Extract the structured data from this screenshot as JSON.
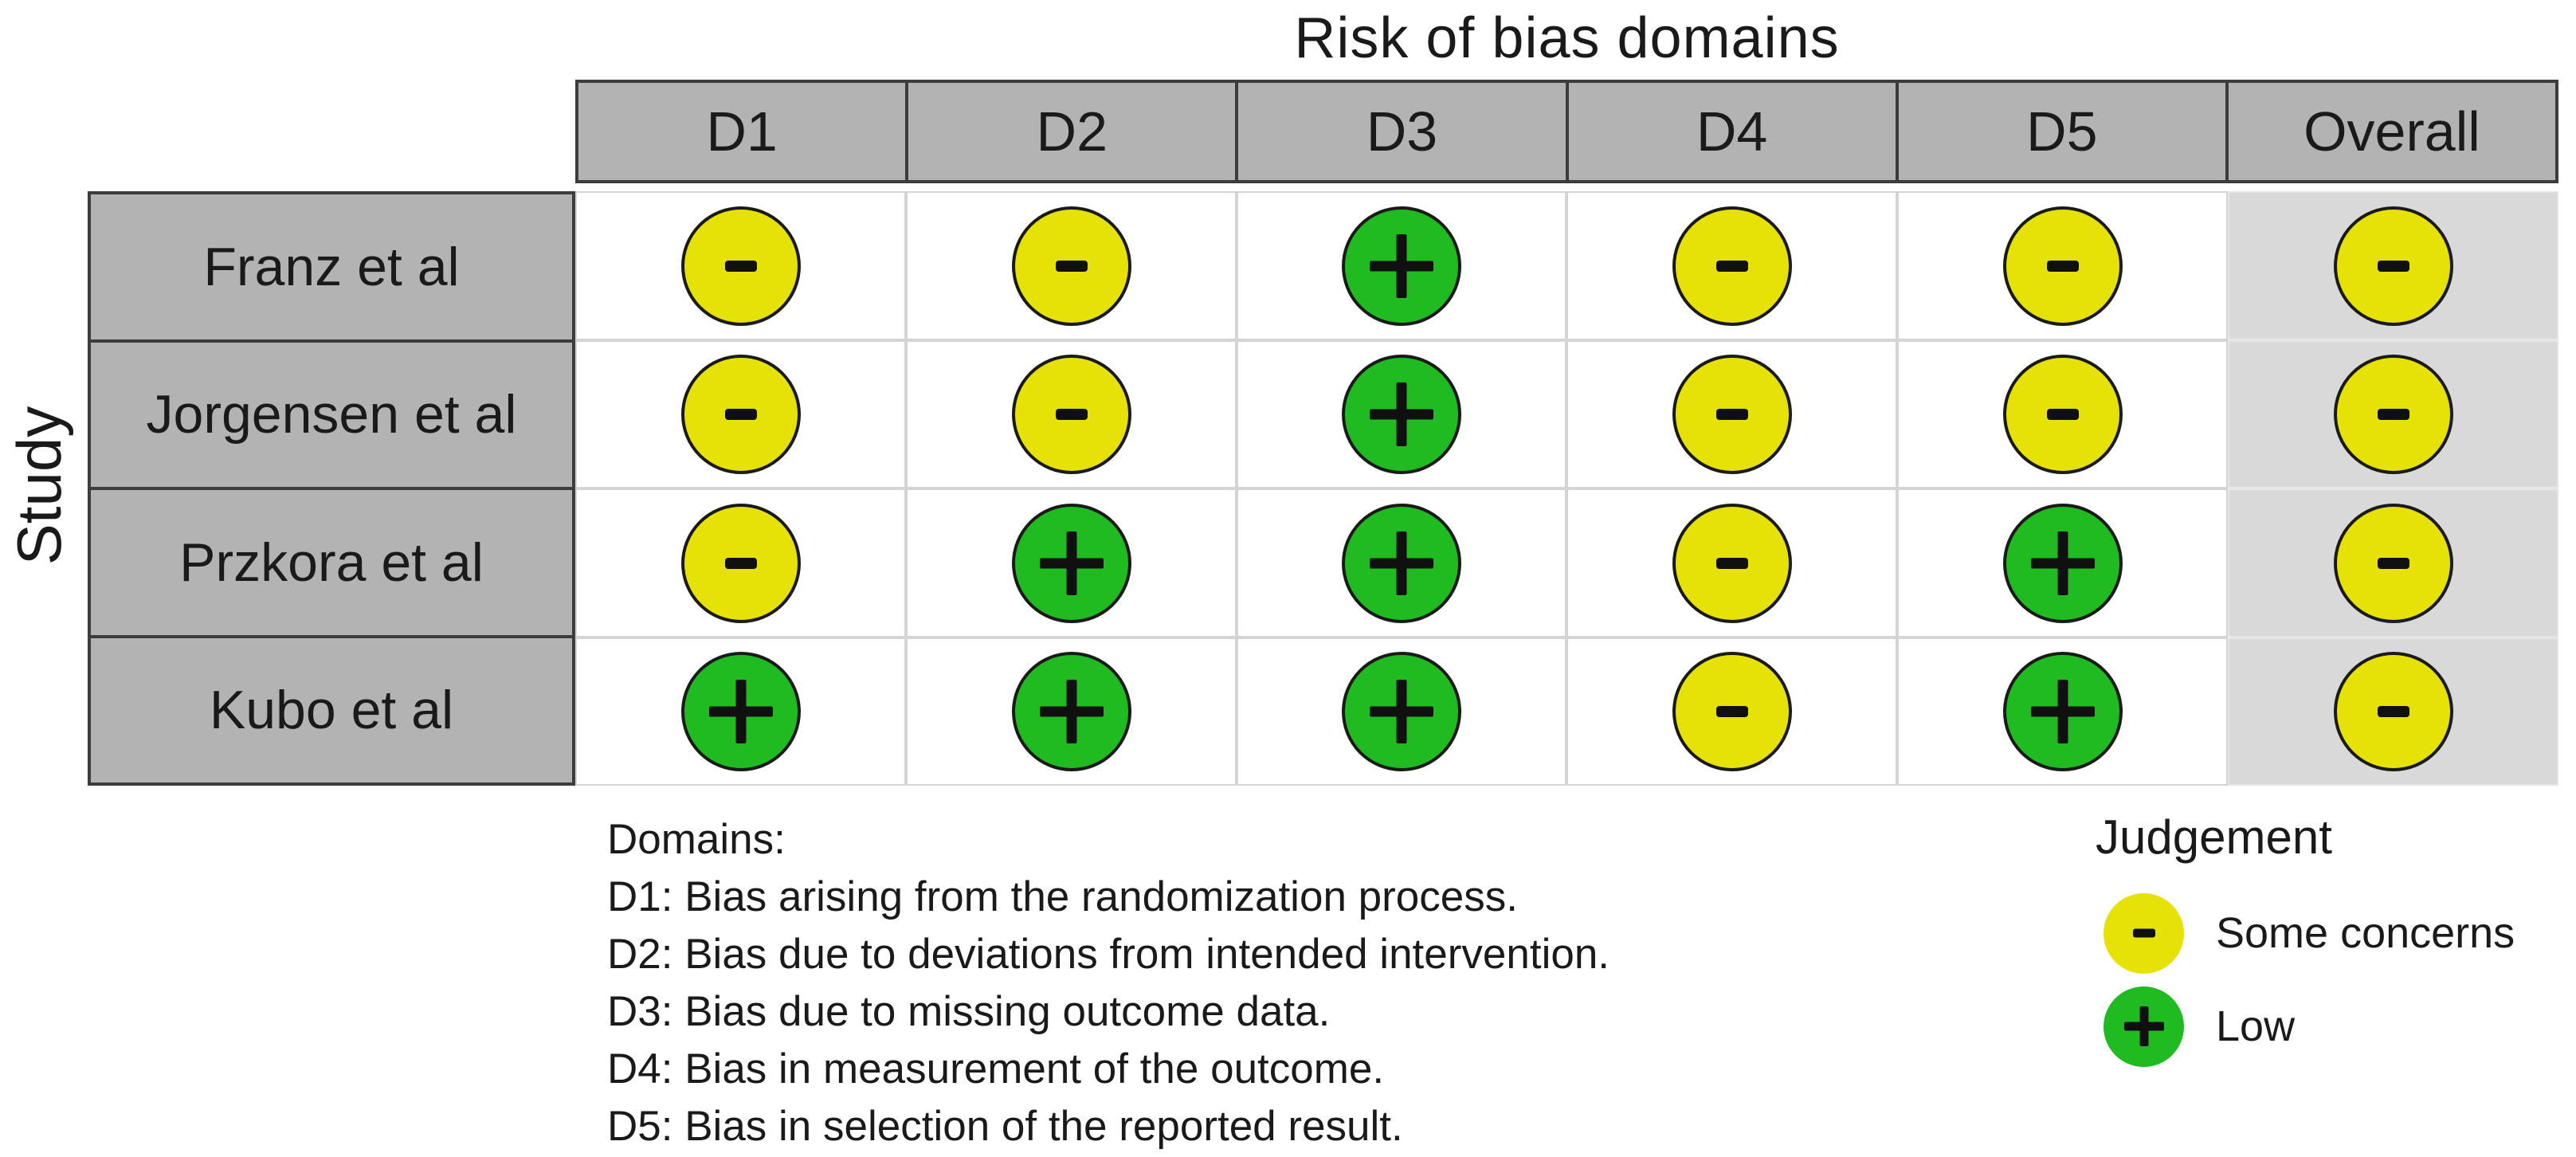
{
  "title": "Risk of bias domains",
  "y_axis_label": "Study",
  "colors": {
    "some_concerns": "#E6E208",
    "low": "#20BB20",
    "header_fill": "#b3b3b3",
    "overall_fill": "#d9d9d9",
    "dark_border": "#3c3c3c",
    "light_border": "#d4d4d4",
    "circle_border": "#1a1a1a",
    "symbol_color": "#101010"
  },
  "legend": {
    "title": "Judgement",
    "items": [
      {
        "judgement": "some_concerns",
        "label": "Some concerns"
      },
      {
        "judgement": "low",
        "label": "Low"
      }
    ]
  },
  "footnotes": {
    "heading": "Domains:",
    "lines": [
      "D1: Bias arising from the randomization process.",
      "D2: Bias due to deviations from intended intervention.",
      "D3: Bias due to missing outcome data.",
      "D4: Bias in measurement of the outcome.",
      "D5: Bias in selection of the reported result."
    ]
  },
  "chart_data": {
    "type": "table",
    "title": "Risk of bias domains",
    "columns": [
      "D1",
      "D2",
      "D3",
      "D4",
      "D5",
      "Overall"
    ],
    "rows": [
      "Franz et al",
      "Jorgensen et al",
      "Przkora et al",
      "Kubo et al"
    ],
    "judgements": [
      [
        "some_concerns",
        "some_concerns",
        "low",
        "some_concerns",
        "some_concerns",
        "some_concerns"
      ],
      [
        "some_concerns",
        "some_concerns",
        "low",
        "some_concerns",
        "some_concerns",
        "some_concerns"
      ],
      [
        "some_concerns",
        "low",
        "low",
        "some_concerns",
        "low",
        "some_concerns"
      ],
      [
        "low",
        "low",
        "low",
        "some_concerns",
        "low",
        "some_concerns"
      ]
    ],
    "judgement_styles": {
      "some_concerns": {
        "symbol": "-",
        "label": "Some concerns",
        "color": "#E6E208"
      },
      "low": {
        "symbol": "+",
        "label": "Low",
        "color": "#20BB20"
      }
    }
  }
}
